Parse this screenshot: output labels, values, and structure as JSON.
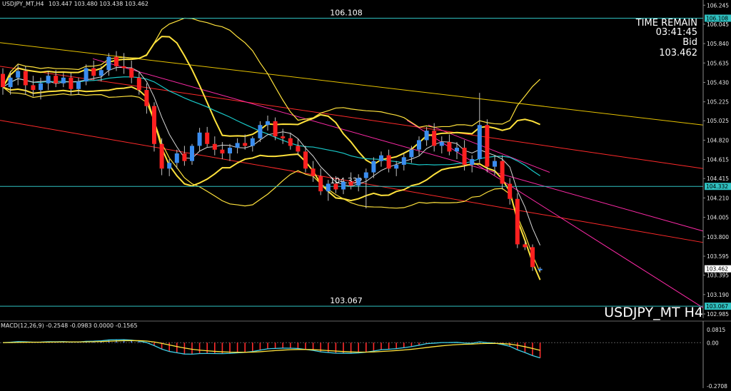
{
  "header": {
    "symbol_text": "USDJPY_MT,H4",
    "ohlc_text": "103.447 103.480 103.438 103.462"
  },
  "info_panel": {
    "time_label": "TIME REMAIN",
    "time_value": "03:41:45",
    "bid_label": "Bid",
    "bid_value": "103.462"
  },
  "watermark": "USDJPY_MT H4",
  "levels": [
    {
      "value": 106.108,
      "label": "106.108",
      "tag": "106.108",
      "color": "#2fc0c0"
    },
    {
      "value": 104.332,
      "label": "104.332",
      "tag": "104.332",
      "color": "#2fc0c0"
    },
    {
      "value": 103.067,
      "label": "103.067",
      "tag": "103.067",
      "color": "#2fc0c0"
    }
  ],
  "price_tag": {
    "value": 103.462,
    "text": "103.462"
  },
  "macd": {
    "label": "MACD(12,26,9) -0.2548 -0.0983 0.0000 -0.1565",
    "ticks": [
      "0.0815",
      "0.00",
      "-0.2708"
    ],
    "colors": {
      "hist_pos": "#4a7cff",
      "hist_neg": "#ff2b2b",
      "main": "#3ed0e8",
      "signal": "#ffe23c"
    }
  },
  "colors": {
    "bull": "#3a8df0",
    "bear": "#ff2020",
    "bb": "#ffe23c",
    "trend_yellow": "#e6c200",
    "trend_red": "#ff2a2a",
    "trend_magenta": "#ff2aa8",
    "ma_cyan": "#19c9c9"
  },
  "chart_data": {
    "type": "candlestick",
    "symbol": "USDJPY_MT",
    "timeframe": "H4",
    "ylim": [
      102.94,
      106.3
    ],
    "y_ticks": [
      106.245,
      106.045,
      105.84,
      105.635,
      105.43,
      105.225,
      105.025,
      104.82,
      104.615,
      104.415,
      104.21,
      104.005,
      103.8,
      103.595,
      103.395,
      103.19,
      102.985
    ],
    "candles": [
      [
        105.52,
        105.58,
        105.3,
        105.38
      ],
      [
        105.38,
        105.55,
        105.3,
        105.48
      ],
      [
        105.48,
        105.62,
        105.4,
        105.55
      ],
      [
        105.55,
        105.6,
        105.3,
        105.4
      ],
      [
        105.4,
        105.5,
        105.28,
        105.35
      ],
      [
        105.35,
        105.48,
        105.25,
        105.42
      ],
      [
        105.42,
        105.55,
        105.35,
        105.5
      ],
      [
        105.5,
        105.56,
        105.38,
        105.42
      ],
      [
        105.42,
        105.53,
        105.38,
        105.48
      ],
      [
        105.48,
        105.53,
        105.3,
        105.36
      ],
      [
        105.36,
        105.48,
        105.3,
        105.44
      ],
      [
        105.44,
        105.62,
        105.4,
        105.58
      ],
      [
        105.58,
        105.66,
        105.46,
        105.5
      ],
      [
        105.5,
        105.6,
        105.44,
        105.56
      ],
      [
        105.56,
        105.74,
        105.5,
        105.7
      ],
      [
        105.7,
        105.76,
        105.55,
        105.6
      ],
      [
        105.6,
        105.74,
        105.52,
        105.58
      ],
      [
        105.58,
        105.66,
        105.42,
        105.48
      ],
      [
        105.48,
        105.54,
        105.3,
        105.35
      ],
      [
        105.35,
        105.42,
        105.1,
        105.18
      ],
      [
        105.18,
        105.22,
        104.7,
        104.78
      ],
      [
        104.78,
        104.84,
        104.45,
        104.52
      ],
      [
        104.52,
        104.62,
        104.44,
        104.58
      ],
      [
        104.58,
        104.72,
        104.52,
        104.68
      ],
      [
        104.68,
        104.76,
        104.55,
        104.6
      ],
      [
        104.6,
        104.78,
        104.56,
        104.76
      ],
      [
        104.76,
        104.95,
        104.7,
        104.9
      ],
      [
        104.9,
        104.96,
        104.75,
        104.78
      ],
      [
        104.78,
        104.86,
        104.66,
        104.72
      ],
      [
        104.72,
        104.8,
        104.62,
        104.68
      ],
      [
        104.68,
        104.78,
        104.6,
        104.74
      ],
      [
        104.74,
        104.84,
        104.68,
        104.79
      ],
      [
        104.79,
        104.88,
        104.72,
        104.76
      ],
      [
        104.76,
        104.86,
        104.7,
        104.84
      ],
      [
        104.84,
        105.02,
        104.8,
        104.98
      ],
      [
        104.98,
        105.08,
        104.92,
        105.02
      ],
      [
        105.02,
        105.06,
        104.82,
        104.86
      ],
      [
        104.86,
        104.94,
        104.78,
        104.84
      ],
      [
        104.84,
        104.9,
        104.72,
        104.76
      ],
      [
        104.76,
        104.84,
        104.66,
        104.7
      ],
      [
        104.7,
        104.76,
        104.48,
        104.52
      ],
      [
        104.52,
        104.6,
        104.38,
        104.44
      ],
      [
        104.44,
        104.52,
        104.24,
        104.28
      ],
      [
        104.28,
        104.4,
        104.18,
        104.36
      ],
      [
        104.36,
        104.44,
        104.26,
        104.3
      ],
      [
        104.3,
        104.42,
        104.25,
        104.38
      ],
      [
        104.38,
        104.48,
        104.3,
        104.34
      ],
      [
        104.34,
        104.46,
        104.28,
        104.42
      ],
      [
        104.42,
        104.52,
        104.1,
        104.48
      ],
      [
        104.48,
        104.64,
        104.42,
        104.6
      ],
      [
        104.6,
        104.7,
        104.54,
        104.66
      ],
      [
        104.66,
        104.72,
        104.48,
        104.52
      ],
      [
        104.52,
        104.6,
        104.44,
        104.56
      ],
      [
        104.56,
        104.68,
        104.5,
        104.64
      ],
      [
        104.64,
        104.76,
        104.58,
        104.72
      ],
      [
        104.72,
        104.86,
        104.66,
        104.82
      ],
      [
        104.82,
        104.96,
        104.76,
        104.92
      ],
      [
        104.92,
        105.0,
        104.7,
        104.76
      ],
      [
        104.76,
        104.86,
        104.68,
        104.8
      ],
      [
        104.8,
        104.88,
        104.66,
        104.7
      ],
      [
        104.7,
        104.8,
        104.62,
        104.74
      ],
      [
        104.74,
        104.82,
        104.5,
        104.56
      ],
      [
        104.56,
        104.66,
        104.48,
        104.62
      ],
      [
        104.62,
        105.32,
        104.58,
        104.98
      ],
      [
        104.98,
        105.04,
        104.48,
        104.54
      ],
      [
        104.54,
        104.66,
        104.45,
        104.6
      ],
      [
        104.6,
        104.66,
        104.3,
        104.36
      ],
      [
        104.36,
        104.42,
        104.14,
        104.2
      ],
      [
        104.2,
        104.26,
        103.68,
        103.72
      ],
      [
        103.72,
        103.76,
        103.66,
        103.69
      ],
      [
        103.69,
        103.72,
        103.44,
        103.48
      ],
      [
        103.447,
        103.48,
        103.438,
        103.462
      ]
    ]
  }
}
